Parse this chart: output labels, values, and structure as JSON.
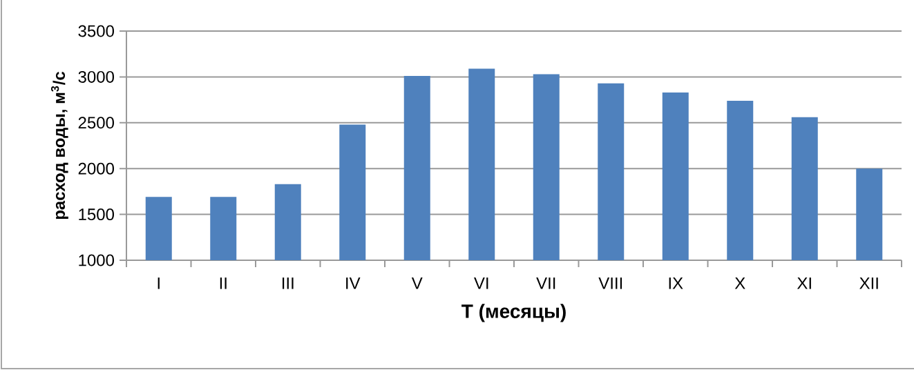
{
  "chart_data": {
    "type": "bar",
    "categories": [
      "I",
      "II",
      "III",
      "IV",
      "V",
      "VI",
      "VII",
      "VIII",
      "IX",
      "X",
      "XI",
      "XII"
    ],
    "values": [
      1690,
      1690,
      1830,
      2480,
      3010,
      3090,
      3030,
      2930,
      2830,
      2740,
      2560,
      2000
    ],
    "color": "#4f81bd",
    "ylim": [
      1000,
      3500
    ],
    "yticks": [
      1000,
      1500,
      2000,
      2500,
      3000,
      3500
    ],
    "grid": "y",
    "xlabel": "T (месяцы)",
    "ylabel": "расход воды, м$^{3}$/с"
  }
}
